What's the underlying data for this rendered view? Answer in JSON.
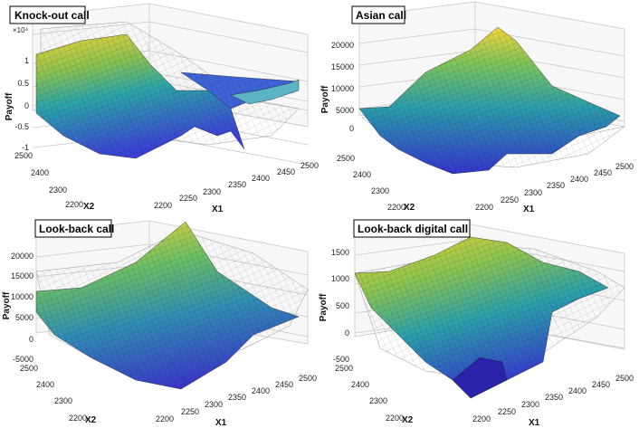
{
  "figure": {
    "description_free": true
  },
  "chart_data": [
    {
      "type": "surface",
      "title": "Knock-out call",
      "xlabel": "X1",
      "ylabel": "X2",
      "zlabel": "Payoff",
      "x_ticks": [
        "2200",
        "2250",
        "2300",
        "2350",
        "2400",
        "2450",
        "2500"
      ],
      "y_ticks": [
        "2200",
        "2300",
        "2400",
        "2500"
      ],
      "z_ticks": [
        "-1",
        "-0.5",
        "0",
        "0.5",
        "1"
      ],
      "z_exponent": "×10⁴",
      "zlim": [
        -1,
        1.4
      ],
      "grid": true,
      "corner_values": {
        "x1_2200_x2_2500": 1.2,
        "x1_2500_x2_2500": 0.4,
        "x1_2200_x2_2200": 0.0,
        "x1_2500_x2_2200": 0.2
      }
    },
    {
      "type": "surface",
      "title": "Asian call",
      "xlabel": "X1",
      "ylabel": "X2",
      "zlabel": "Payoff",
      "x_ticks": [
        "2200",
        "2250",
        "2300",
        "2350",
        "2400",
        "2450",
        "2500"
      ],
      "y_ticks": [
        "2200",
        "2300",
        "2400",
        "2500"
      ],
      "z_ticks": [
        "0",
        "5000",
        "10000",
        "15000",
        "20000"
      ],
      "zlim": [
        -2000,
        22000
      ],
      "grid": true,
      "corner_values": {
        "x1_2200_x2_2500": 4500,
        "x1_2500_x2_2500": 22000,
        "x1_2200_x2_2200": 0,
        "x1_2500_x2_2200": 3000
      }
    },
    {
      "type": "surface",
      "title": "Look-back call",
      "xlabel": "X1",
      "ylabel": "X2",
      "zlabel": "Payoff",
      "x_ticks": [
        "2200",
        "2250",
        "2300",
        "2350",
        "2400",
        "2450",
        "2500"
      ],
      "y_ticks": [
        "2200",
        "2300",
        "2400",
        "2500"
      ],
      "z_ticks": [
        "-5000",
        "0",
        "5000",
        "10000",
        "15000",
        "20000"
      ],
      "zlim": [
        -5000,
        20000
      ],
      "grid": true,
      "corner_values": {
        "x1_2200_x2_2500": 11000,
        "x1_2500_x2_2500": 20000,
        "x1_2200_x2_2200": -4000,
        "x1_2500_x2_2200": 5000
      }
    },
    {
      "type": "surface",
      "title": "Look-back digital call",
      "xlabel": "X1",
      "ylabel": "X2",
      "zlabel": "Payoff",
      "x_ticks": [
        "2200",
        "2250",
        "2300",
        "2350",
        "2400",
        "2450",
        "2500"
      ],
      "y_ticks": [
        "2200",
        "2300",
        "2400",
        "2500"
      ],
      "z_ticks": [
        "-500",
        "0",
        "500",
        "1000",
        "1500"
      ],
      "zlim": [
        -500,
        1500
      ],
      "grid": true,
      "corner_values": {
        "x1_2200_x2_2500": 1100,
        "x1_2500_x2_2500": 1500,
        "x1_2200_x2_2200": -300,
        "x1_2500_x2_2200": 900
      }
    }
  ]
}
